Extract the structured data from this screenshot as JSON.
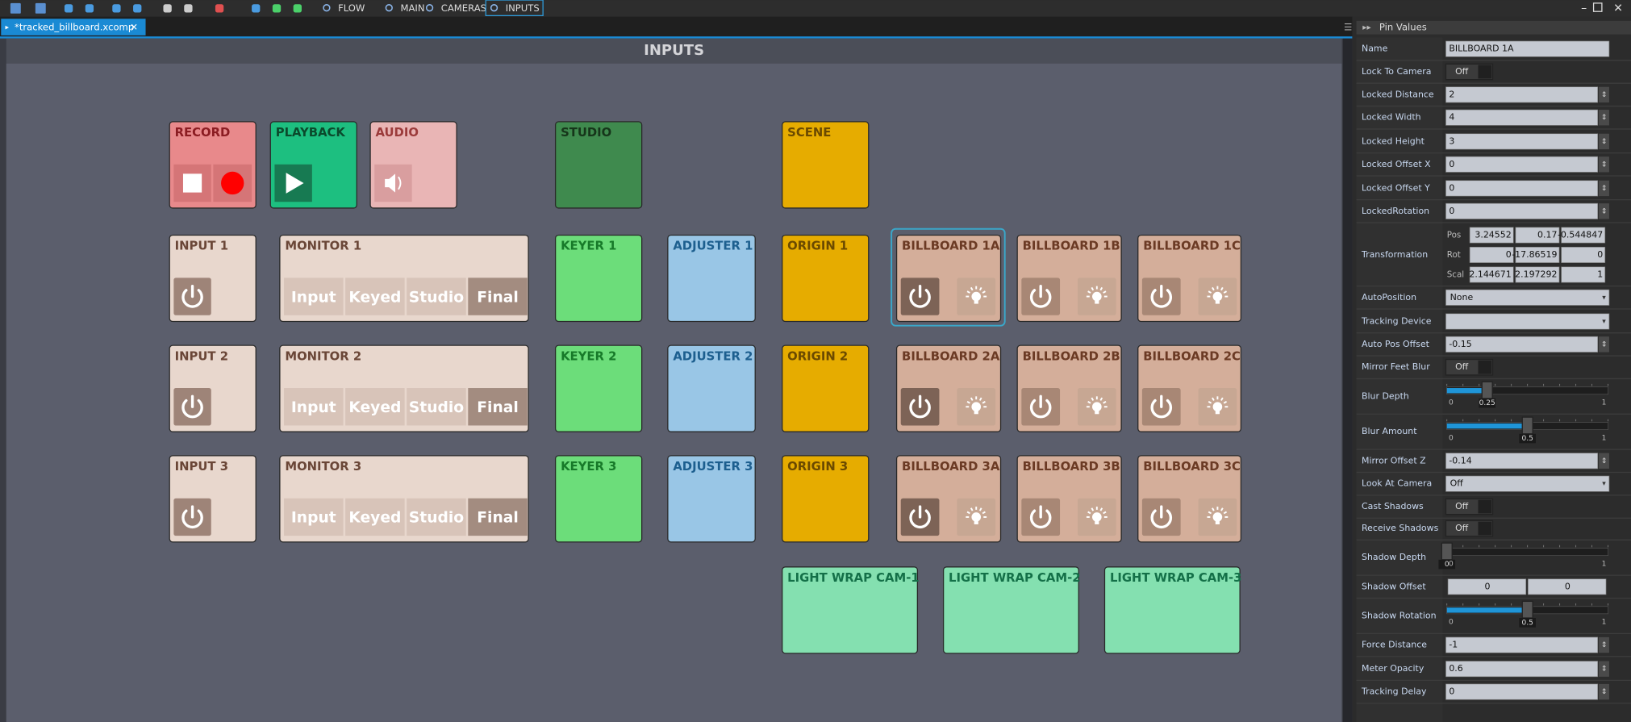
{
  "toolbar": {
    "tabs": [
      "FLOW",
      "MAIN",
      "CAMERAS",
      "INPUTS"
    ]
  },
  "document_tab": "*tracked_billboard.xcomp",
  "canvas": {
    "title": "INPUTS",
    "tiles": [
      {
        "label": "RECORD"
      },
      {
        "label": "PLAYBACK"
      },
      {
        "label": "AUDIO"
      },
      {
        "label": "STUDIO"
      },
      {
        "label": "SCENE"
      },
      {
        "label": "INPUT 1"
      },
      {
        "label": "MONITOR 1",
        "buttons": [
          "Input",
          "Keyed",
          "Studio",
          "Final"
        ]
      },
      {
        "label": "KEYER 1"
      },
      {
        "label": "ADJUSTER 1"
      },
      {
        "label": "ORIGIN 1"
      },
      {
        "label": "BILLBOARD 1A"
      },
      {
        "label": "BILLBOARD 1B"
      },
      {
        "label": "BILLBOARD 1C"
      },
      {
        "label": "INPUT 2"
      },
      {
        "label": "MONITOR 2",
        "buttons": [
          "Input",
          "Keyed",
          "Studio",
          "Final"
        ]
      },
      {
        "label": "KEYER 2"
      },
      {
        "label": "ADJUSTER 2"
      },
      {
        "label": "ORIGIN 2"
      },
      {
        "label": "BILLBOARD 2A"
      },
      {
        "label": "BILLBOARD 2B"
      },
      {
        "label": "BILLBOARD 2C"
      },
      {
        "label": "INPUT 3"
      },
      {
        "label": "MONITOR 3",
        "buttons": [
          "Input",
          "Keyed",
          "Studio",
          "Final"
        ]
      },
      {
        "label": "KEYER 3"
      },
      {
        "label": "ADJUSTER 3"
      },
      {
        "label": "ORIGIN 3"
      },
      {
        "label": "BILLBOARD 3A"
      },
      {
        "label": "BILLBOARD 3B"
      },
      {
        "label": "BILLBOARD 3C"
      },
      {
        "label": "LIGHT WRAP CAM-1"
      },
      {
        "label": "LIGHT WRAP CAM-2"
      },
      {
        "label": "LIGHT WRAP CAM-3"
      }
    ]
  },
  "panel": {
    "title": "Pin Values",
    "properties": [
      {
        "label": "Name",
        "kind": "text",
        "value": "BILLBOARD 1A"
      },
      {
        "label": "Lock To Camera",
        "kind": "toggle",
        "value": "Off"
      },
      {
        "label": "Locked Distance",
        "kind": "spin",
        "value": "2"
      },
      {
        "label": "Locked Width",
        "kind": "spin",
        "value": "4"
      },
      {
        "label": "Locked Height",
        "kind": "spin",
        "value": "3"
      },
      {
        "label": "Locked Offset X",
        "kind": "spin",
        "value": "0"
      },
      {
        "label": "Locked Offset Y",
        "kind": "spin",
        "value": "0"
      },
      {
        "label": "LockedRotation",
        "kind": "spin",
        "value": "0"
      },
      {
        "label": "Transformation",
        "kind": "transform",
        "rows": [
          {
            "label": "Pos",
            "values": [
              "3.24552",
              "0.17",
              "-0.544847"
            ]
          },
          {
            "label": "Rot",
            "values": [
              "0",
              "-17.86519",
              "0"
            ]
          },
          {
            "label": "Scal",
            "values": [
              "2.144671",
              "2.197292",
              "1"
            ]
          }
        ]
      },
      {
        "label": "AutoPosition",
        "kind": "dropdown",
        "value": "None"
      },
      {
        "label": "Tracking Device",
        "kind": "dropdown",
        "value": ""
      },
      {
        "label": "Auto Pos Offset",
        "kind": "spin",
        "value": "-0.15"
      },
      {
        "label": "Mirror Feet Blur",
        "kind": "toggle",
        "value": "Off"
      },
      {
        "label": "Blur Depth",
        "kind": "slider",
        "value": 0.25,
        "min": 0,
        "max": 1
      },
      {
        "label": "Blur Amount",
        "kind": "slider",
        "value": 0.5,
        "min": 0,
        "max": 1
      },
      {
        "label": "Mirror Offset Z",
        "kind": "spin",
        "value": "-0.14"
      },
      {
        "label": "Look At Camera",
        "kind": "dropdown",
        "value": "Off"
      },
      {
        "label": "Cast Shadows",
        "kind": "toggle",
        "value": "Off"
      },
      {
        "label": "Receive Shadows",
        "kind": "toggle",
        "value": "Off"
      },
      {
        "label": "Shadow Depth",
        "kind": "slider",
        "value": 0,
        "min": 0,
        "max": 1
      },
      {
        "label": "Shadow Offset",
        "kind": "vector2",
        "values": [
          "0",
          "0"
        ]
      },
      {
        "label": "Shadow Rotation",
        "kind": "slider",
        "value": 0.5,
        "min": 0,
        "max": 1
      },
      {
        "label": "Force Distance",
        "kind": "spin",
        "value": "-1"
      },
      {
        "label": "Meter Opacity",
        "kind": "spin",
        "value": "0.6"
      },
      {
        "label": "Tracking Delay",
        "kind": "spin",
        "value": "0"
      }
    ]
  }
}
